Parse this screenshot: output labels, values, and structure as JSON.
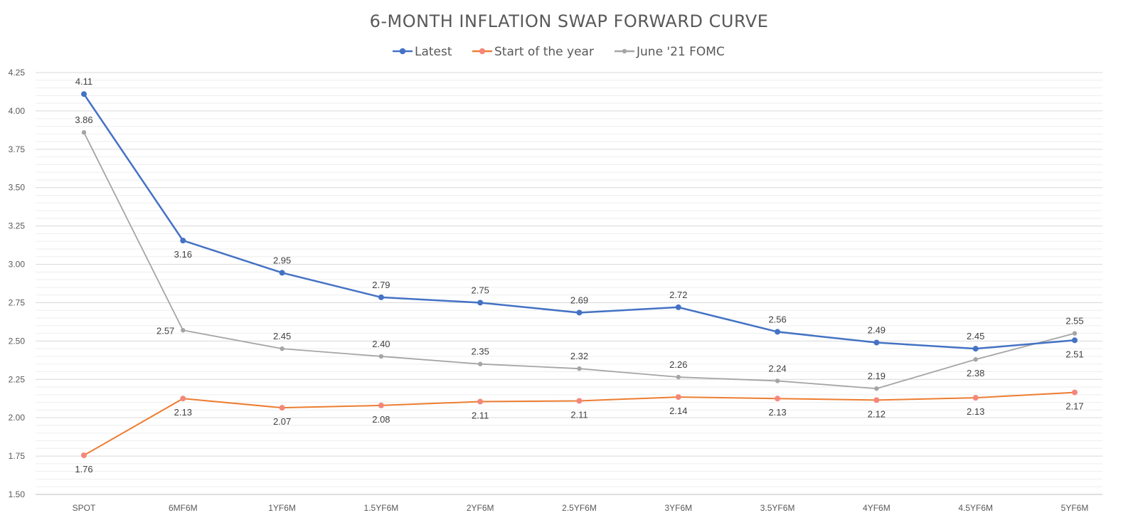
{
  "chart_data": {
    "type": "line",
    "title": "6-MONTH INFLATION SWAP FORWARD CURVE",
    "xlabel": "",
    "ylabel": "",
    "ylim": [
      1.5,
      4.25
    ],
    "y_ticks": [
      "1.50",
      "1.75",
      "2.00",
      "2.25",
      "2.50",
      "2.75",
      "3.00",
      "3.25",
      "3.50",
      "3.75",
      "4.00",
      "4.25"
    ],
    "grid": true,
    "legend_position": "top-center",
    "categories": [
      "SPOT",
      "6MF6M",
      "1YF6M",
      "1.5YF6M",
      "2YF6M",
      "2.5YF6M",
      "3YF6M",
      "3.5YF6M",
      "4YF6M",
      "4.5YF6M",
      "5YF6M"
    ],
    "series": [
      {
        "name": "Latest",
        "color": "#4472c4",
        "values": [
          4.11,
          3.155,
          2.945,
          2.785,
          2.75,
          2.685,
          2.72,
          2.56,
          2.49,
          2.45,
          2.505
        ],
        "labels": [
          "4.11",
          "3.16",
          "2.95",
          "2.79",
          "2.75",
          "2.69",
          "2.72",
          "2.56",
          "2.49",
          "2.45",
          "2.51"
        ],
        "label_pos": [
          "above",
          "below",
          "above",
          "above",
          "above",
          "above",
          "above",
          "above",
          "above",
          "above",
          "below"
        ]
      },
      {
        "name": "Start of the year",
        "color": "#ed7d31",
        "marker_color": "#f4877a",
        "values": [
          1.755,
          2.125,
          2.065,
          2.08,
          2.105,
          2.11,
          2.135,
          2.125,
          2.115,
          2.13,
          2.165
        ],
        "labels": [
          "1.76",
          "2.13",
          "2.07",
          "2.08",
          "2.11",
          "2.11",
          "2.14",
          "2.13",
          "2.12",
          "2.13",
          "2.17"
        ],
        "label_pos": [
          "below",
          "below",
          "below",
          "below",
          "below",
          "below",
          "below",
          "below",
          "below",
          "below",
          "below"
        ]
      },
      {
        "name": "June '21 FOMC",
        "color": "#a5a5a5",
        "values": [
          3.86,
          2.57,
          2.45,
          2.4,
          2.35,
          2.32,
          2.265,
          2.24,
          2.19,
          2.38,
          2.55
        ],
        "labels": [
          "3.86",
          "2.57",
          "2.45",
          "2.40",
          "2.35",
          "2.32",
          "2.26",
          "2.24",
          "2.19",
          "2.38",
          "2.55"
        ],
        "label_pos": [
          "above",
          "left",
          "above",
          "above",
          "above",
          "above",
          "above",
          "above",
          "above",
          "below",
          "above"
        ]
      }
    ]
  }
}
